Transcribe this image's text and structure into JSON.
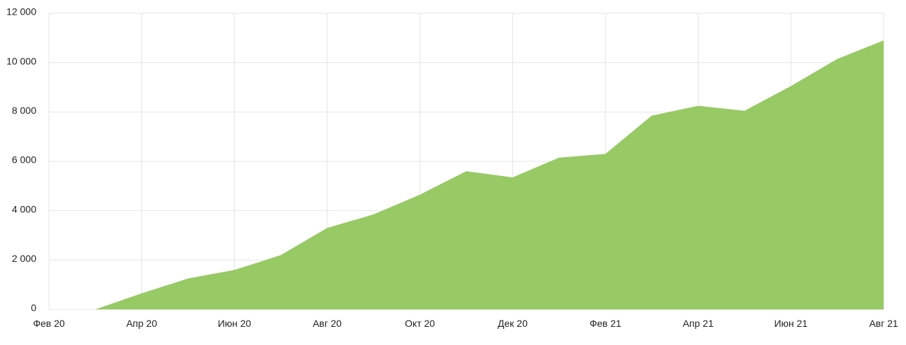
{
  "chart_data": {
    "type": "area",
    "title": "",
    "xlabel": "",
    "ylabel": "",
    "ylim": [
      0,
      12000
    ],
    "yticks": [
      0,
      2000,
      4000,
      6000,
      8000,
      10000,
      12000
    ],
    "ytick_labels": [
      "0",
      "2 000",
      "4 000",
      "6 000",
      "8 000",
      "10 000",
      "12 000"
    ],
    "xtick_labels": [
      "Фев 20",
      "Апр 20",
      "Июн 20",
      "Авг 20",
      "Окт 20",
      "Дек 20",
      "Фев 21",
      "Апр 21",
      "Июн 21",
      "Авг 21"
    ],
    "categories": [
      "Фев 20",
      "Мар 20",
      "Апр 20",
      "Май 20",
      "Июн 20",
      "Июл 20",
      "Авг 20",
      "Сен 20",
      "Окт 20",
      "Ноя 20",
      "Дек 20",
      "Янв 21",
      "Фев 21",
      "Мар 21",
      "Апр 21",
      "Май 21",
      "Июн 21",
      "Июл 21",
      "Авг 21"
    ],
    "values": [
      0,
      0,
      650,
      1250,
      1600,
      2200,
      3300,
      3850,
      4650,
      5600,
      5350,
      6150,
      6300,
      7850,
      8250,
      8050,
      9050,
      10150,
      10900
    ],
    "grid": true,
    "fill_color": "#97c965"
  }
}
